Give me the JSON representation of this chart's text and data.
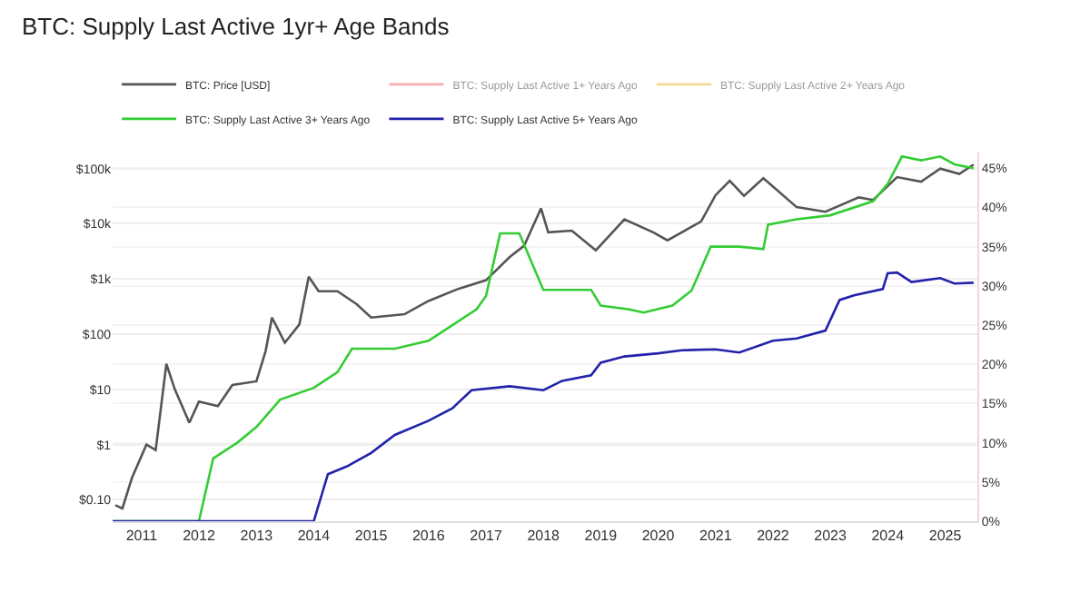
{
  "chart_data": {
    "type": "line",
    "title": "BTC: Supply Last Active 1yr+ Age Bands",
    "log": "y",
    "grid": "y",
    "legend": "top left",
    "marker": "none",
    "line_style": "solid",
    "xlim": [
      "2010-07",
      "2025-07-25"
    ],
    "xticks": [
      "2011",
      "2012",
      "2013",
      "2014",
      "2015",
      "2016",
      "2017",
      "2018",
      "2019",
      "2020",
      "2021",
      "2022",
      "2023",
      "2024",
      "2025"
    ],
    "ylim": [
      0.041,
      195000
    ],
    "yticks": [
      {
        "value": 0.1,
        "label": "$0.10"
      },
      {
        "value": 1,
        "label": "$1"
      },
      {
        "value": 10,
        "label": "$10"
      },
      {
        "value": 100,
        "label": "$100"
      },
      {
        "value": 1000,
        "label": "$1k"
      },
      {
        "value": 10000,
        "label": "$10k"
      },
      {
        "value": 100000,
        "label": "$100k"
      }
    ],
    "y2lim": [
      0,
      47
    ],
    "y2ticks": [
      {
        "value": 0,
        "label": "0%"
      },
      {
        "value": 5,
        "label": "5%"
      },
      {
        "value": 10,
        "label": "10%"
      },
      {
        "value": 15,
        "label": "15%"
      },
      {
        "value": 20,
        "label": "20%"
      },
      {
        "value": 25,
        "label": "25%"
      },
      {
        "value": 30,
        "label": "30%"
      },
      {
        "value": 35,
        "label": "35%"
      },
      {
        "value": 40,
        "label": "40%"
      },
      {
        "value": 45,
        "label": "45%"
      }
    ],
    "series": [
      {
        "name": "BTC: Price [USD]",
        "color": "#555555",
        "x": [
          "2010-07-18",
          "2010-09",
          "2010-11",
          "2011-02",
          "2011-04",
          "2011-06-08",
          "2011-08",
          "2011-11",
          "2012-01",
          "2012-05",
          "2012-08",
          "2013-01",
          "2013-03",
          "2013-04-10",
          "2013-07",
          "2013-10",
          "2013-11-30",
          "2014-02",
          "2014-06",
          "2014-10",
          "2015-01",
          "2015-08",
          "2016-01",
          "2016-07",
          "2017-01",
          "2017-06",
          "2017-09",
          "2017-12-17",
          "2018-02",
          "2018-07",
          "2018-12",
          "2019-06",
          "2019-12",
          "2020-03",
          "2020-10",
          "2021-01",
          "2021-04",
          "2021-07",
          "2021-11",
          "2022-06",
          "2022-12",
          "2023-07",
          "2023-10",
          "2024-03",
          "2024-08",
          "2024-12",
          "2025-04",
          "2025-07"
        ],
        "values": [
          0.08,
          0.07,
          0.25,
          1,
          0.8,
          29,
          10,
          2.5,
          6,
          5,
          12,
          14,
          50,
          200,
          70,
          150,
          1100,
          600,
          600,
          350,
          200,
          230,
          400,
          650,
          950,
          2500,
          4000,
          19000,
          7000,
          7500,
          3300,
          12000,
          7000,
          5000,
          11000,
          33000,
          60000,
          32000,
          67000,
          20000,
          16500,
          30000,
          27000,
          70000,
          58000,
          100000,
          80000,
          118000
        ]
      },
      {
        "name": "BTC: Supply Last Active 1+ Years Ago",
        "color": "#f06060",
        "axis": "y2"
      },
      {
        "name": "BTC: Supply Last Active 2+ Years Ago",
        "color": "#f0b030",
        "axis": "y2"
      },
      {
        "name": "BTC: Supply Last Active 3+ Years Ago",
        "color": "#33cc33",
        "axis": "y2",
        "x": [
          "2010-07",
          "2012-01",
          "2012-04",
          "2012-09",
          "2013-01",
          "2013-06",
          "2014-01",
          "2014-06",
          "2014-09",
          "2015-06",
          "2016-01",
          "2016-06",
          "2016-11",
          "2017-01",
          "2017-04",
          "2017-08",
          "2018-01",
          "2018-11",
          "2019-01",
          "2019-07",
          "2019-10",
          "2020-04",
          "2020-08",
          "2020-12",
          "2021-06",
          "2021-11",
          "2021-12",
          "2022-06",
          "2023-01",
          "2023-10",
          "2024-01",
          "2024-04",
          "2024-08",
          "2024-12",
          "2025-03",
          "2025-07"
        ],
        "values": [
          0,
          0,
          8,
          10,
          12,
          15.5,
          17,
          19,
          22,
          22,
          23,
          25,
          27,
          28.7,
          36.7,
          36.7,
          29.5,
          29.5,
          27.5,
          27,
          26.6,
          27.5,
          29.4,
          35,
          35,
          34.7,
          37.8,
          38.5,
          39,
          40.8,
          43,
          46.5,
          46,
          46.5,
          45.5,
          45
        ]
      },
      {
        "name": "BTC: Supply Last Active 5+ Years Ago",
        "color": "#2222aa",
        "axis": "y2",
        "x": [
          "2010-07",
          "2014-01",
          "2014-04",
          "2014-08",
          "2015-01",
          "2015-06",
          "2016-01",
          "2016-06",
          "2016-10",
          "2017-06",
          "2018-01",
          "2018-05",
          "2018-11",
          "2019-01",
          "2019-06",
          "2020-01",
          "2020-06",
          "2021-01",
          "2021-06",
          "2022-01",
          "2022-06",
          "2022-12",
          "2023-03",
          "2023-06",
          "2023-12",
          "2024-01",
          "2024-03",
          "2024-06",
          "2024-12",
          "2025-03",
          "2025-07"
        ],
        "values": [
          0,
          0,
          6,
          7,
          8.7,
          11,
          12.8,
          14.4,
          16.7,
          17.2,
          16.7,
          17.9,
          18.6,
          20.2,
          21,
          21.4,
          21.8,
          21.9,
          21.5,
          23,
          23.3,
          24.3,
          28.2,
          28.8,
          29.6,
          31.6,
          31.7,
          30.5,
          31,
          30.3,
          30.4
        ]
      }
    ]
  }
}
